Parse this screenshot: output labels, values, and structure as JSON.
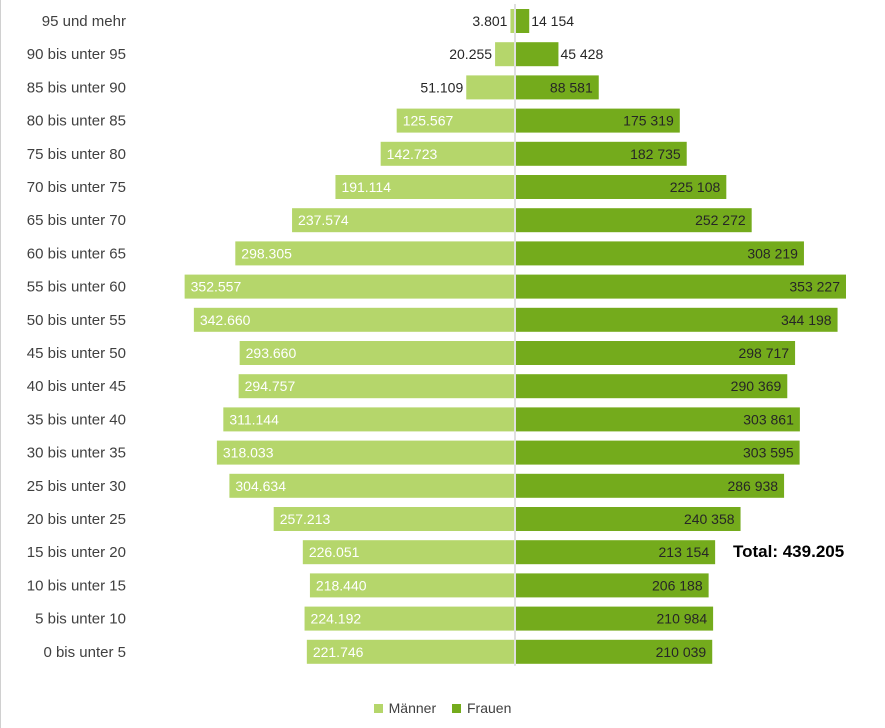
{
  "colors": {
    "maenner": "#b5d66b",
    "frauen": "#74ab1c",
    "axis": "#bfbfbf",
    "label_dark": "#262626",
    "label_light": "#ffffff"
  },
  "total_text": "Total: 439.205",
  "chart_data": {
    "type": "bar",
    "orientation": "horizontal-population-pyramid",
    "categories": [
      "95 und mehr",
      "90 bis unter 95",
      "85 bis unter 90",
      "80 bis unter 85",
      "75 bis unter 80",
      "70 bis unter 75",
      "65 bis unter 70",
      "60 bis unter 65",
      "55 bis unter 60",
      "50 bis unter 55",
      "45 bis unter 50",
      "40 bis unter 45",
      "35 bis unter 40",
      "30 bis unter 35",
      "25 bis unter 30",
      "20 bis unter 25",
      "15 bis unter 20",
      "10 bis unter 15",
      "5 bis unter 10",
      "0 bis unter 5"
    ],
    "series": [
      {
        "name": "Männer",
        "values": [
          3801,
          20255,
          51109,
          125567,
          142723,
          191114,
          237574,
          298305,
          352557,
          342660,
          293660,
          294757,
          311144,
          318033,
          304634,
          257213,
          226051,
          218440,
          224192,
          221746
        ],
        "labels": [
          "3.801",
          "20.255",
          "51.109",
          "125.567",
          "142.723",
          "191.114",
          "237.574",
          "298.305",
          "352.557",
          "342.660",
          "293.660",
          "294.757",
          "311.144",
          "318.033",
          "304.634",
          "257.213",
          "226.051",
          "218.440",
          "224.192",
          "221.746"
        ]
      },
      {
        "name": "Frauen",
        "values": [
          14154,
          45428,
          88581,
          175319,
          182735,
          225108,
          252272,
          308219,
          353227,
          344198,
          298717,
          290369,
          303861,
          303595,
          286938,
          240358,
          213154,
          206188,
          210984,
          210039
        ],
        "labels": [
          "14 154",
          "45 428",
          "88 581",
          "175 319",
          "182 735",
          "225 108",
          "252 272",
          "308 219",
          "353 227",
          "344 198",
          "298 717",
          "290 369",
          "303 861",
          "303 595",
          "286 938",
          "240 358",
          "213 154",
          "206 188",
          "210 984",
          "210 039"
        ]
      }
    ],
    "legend": [
      "Männer",
      "Frauen"
    ],
    "legend_position": "bottom",
    "grid": false
  }
}
